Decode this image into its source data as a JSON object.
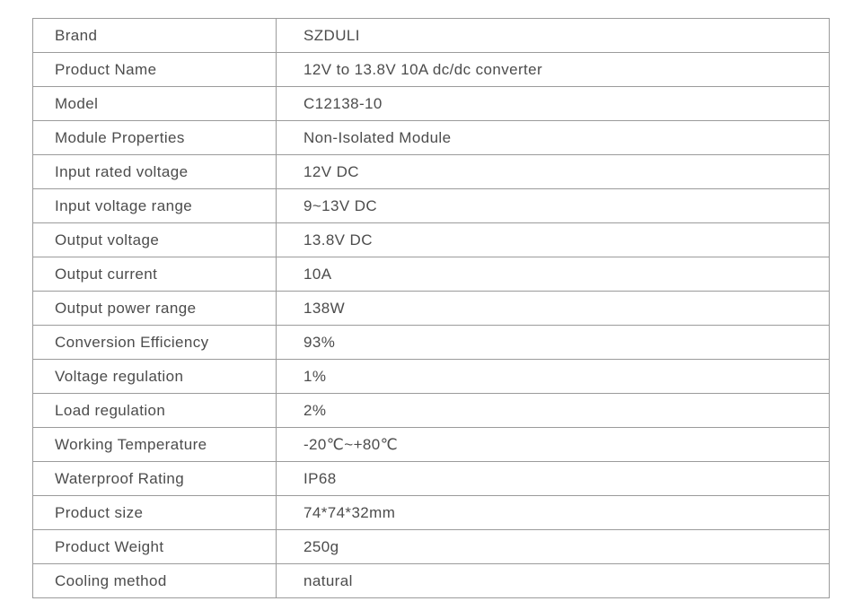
{
  "colors": {
    "border": "#9b9b9b",
    "text": "#4c4c4c",
    "background": "#ffffff"
  },
  "spec_table": {
    "rows": [
      {
        "label": "Brand",
        "value": "SZDULI"
      },
      {
        "label": "Product Name",
        "value": "12V to 13.8V 10A dc/dc converter"
      },
      {
        "label": "Model",
        "value": "C12138-10"
      },
      {
        "label": "Module Properties",
        "value": "Non-Isolated Module"
      },
      {
        "label": "Input rated voltage",
        "value": "12V DC"
      },
      {
        "label": "Input voltage range",
        "value": "9~13V DC"
      },
      {
        "label": "Output voltage",
        "value": "13.8V DC"
      },
      {
        "label": "Output current",
        "value": "10A"
      },
      {
        "label": "Output power range",
        "value": "138W"
      },
      {
        "label": "Conversion Efficiency",
        "value": "93%"
      },
      {
        "label": "Voltage regulation",
        "value": "1%"
      },
      {
        "label": "Load regulation",
        "value": "2%"
      },
      {
        "label": "Working Temperature",
        "value": "-20℃~+80℃"
      },
      {
        "label": "Waterproof Rating",
        "value": "IP68"
      },
      {
        "label": "Product size",
        "value": "74*74*32mm"
      },
      {
        "label": "Product Weight",
        "value": "250g"
      },
      {
        "label": "Cooling method",
        "value": "natural"
      }
    ]
  }
}
